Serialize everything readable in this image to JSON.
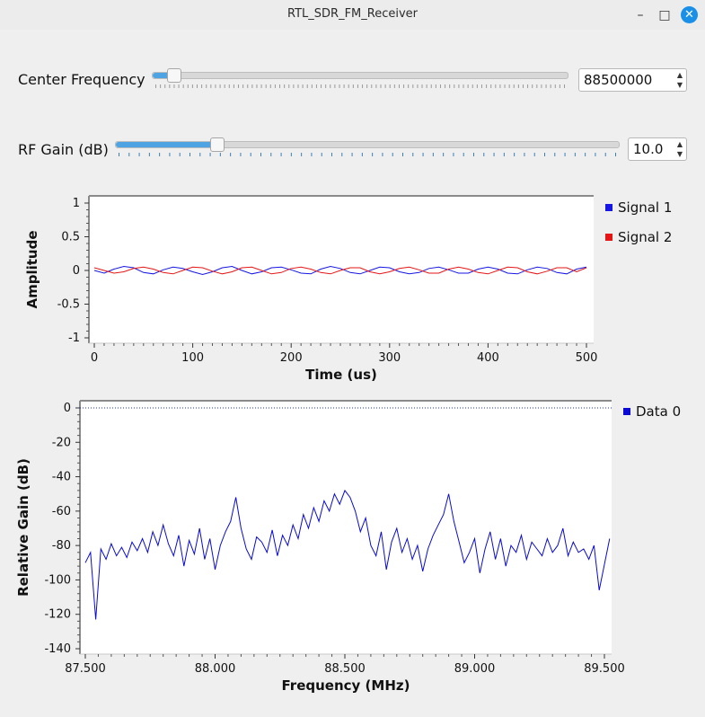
{
  "window": {
    "title": "RTL_SDR_FM_Receiver"
  },
  "controls": {
    "center_frequency": {
      "label": "Center Frequency",
      "value": "88500000",
      "slider_fraction": 0.05
    },
    "rf_gain": {
      "label": "RF Gain (dB)",
      "value": "10.0",
      "slider_fraction": 0.2
    }
  },
  "colors": {
    "signal1": "#1515e6",
    "signal2": "#e61515",
    "data0": "#0a0ad4",
    "slider_fill": "#4ea3e2",
    "close_button": "#1a8fe8"
  },
  "icons": {
    "minimize": "minimize-icon",
    "maximize": "maximize-icon",
    "close": "close-icon"
  },
  "chart_data": [
    {
      "type": "line",
      "xlabel": "Time (us)",
      "ylabel": "Amplitude",
      "xlim": [
        0,
        500
      ],
      "ylim": [
        -1,
        1
      ],
      "xticks": [
        "0",
        "100",
        "200",
        "300",
        "400",
        "500"
      ],
      "yticks": [
        "1",
        "0.5",
        "0",
        "-0.5",
        "-1"
      ],
      "legend_position": "right",
      "series": [
        {
          "name": "Signal 1",
          "x": [
            0,
            10,
            20,
            30,
            40,
            50,
            60,
            70,
            80,
            90,
            100,
            110,
            120,
            130,
            140,
            150,
            160,
            170,
            180,
            190,
            200,
            210,
            220,
            230,
            240,
            250,
            260,
            270,
            280,
            290,
            300,
            310,
            320,
            330,
            340,
            350,
            360,
            370,
            380,
            390,
            400,
            410,
            420,
            430,
            440,
            450,
            460,
            470,
            480,
            490,
            500
          ],
          "y": [
            0.0,
            -0.04,
            0.02,
            0.06,
            0.04,
            -0.03,
            -0.05,
            0.01,
            0.05,
            0.03,
            -0.02,
            -0.06,
            -0.02,
            0.04,
            0.06,
            0.0,
            -0.05,
            -0.02,
            0.04,
            0.05,
            0.01,
            -0.04,
            -0.05,
            0.02,
            0.06,
            0.03,
            -0.03,
            -0.05,
            0.0,
            0.05,
            0.04,
            -0.02,
            -0.05,
            -0.03,
            0.03,
            0.05,
            0.01,
            -0.04,
            -0.04,
            0.02,
            0.05,
            0.02,
            -0.04,
            -0.05,
            0.01,
            0.05,
            0.03,
            -0.03,
            -0.05,
            0.02,
            0.05
          ]
        },
        {
          "name": "Signal 2",
          "x": [
            0,
            10,
            20,
            30,
            40,
            50,
            60,
            70,
            80,
            90,
            100,
            110,
            120,
            130,
            140,
            150,
            160,
            170,
            180,
            190,
            200,
            210,
            220,
            230,
            240,
            250,
            260,
            270,
            280,
            290,
            300,
            310,
            320,
            330,
            340,
            350,
            360,
            370,
            380,
            390,
            400,
            410,
            420,
            430,
            440,
            450,
            460,
            470,
            480,
            490,
            500
          ],
          "y": [
            0.04,
            0.0,
            -0.04,
            -0.02,
            0.03,
            0.05,
            0.02,
            -0.03,
            -0.05,
            0.0,
            0.05,
            0.04,
            -0.01,
            -0.05,
            -0.02,
            0.04,
            0.05,
            0.0,
            -0.05,
            -0.03,
            0.03,
            0.05,
            0.02,
            -0.03,
            -0.05,
            0.0,
            0.04,
            0.04,
            -0.02,
            -0.05,
            -0.02,
            0.03,
            0.05,
            0.01,
            -0.04,
            -0.04,
            0.02,
            0.05,
            0.02,
            -0.03,
            -0.05,
            0.0,
            0.05,
            0.04,
            -0.02,
            -0.05,
            -0.01,
            0.04,
            0.04,
            -0.02,
            0.04
          ]
        }
      ]
    },
    {
      "type": "line",
      "xlabel": "Frequency (MHz)",
      "ylabel": "Relative Gain (dB)",
      "xlim": [
        87.5,
        89.5
      ],
      "ylim": [
        -140,
        0
      ],
      "xticks": [
        "87.500",
        "88.000",
        "88.500",
        "89.000",
        "89.500"
      ],
      "yticks": [
        "0",
        "-20",
        "-40",
        "-60",
        "-80",
        "-100",
        "-120",
        "-140"
      ],
      "legend_position": "right",
      "reference_line": 0,
      "series": [
        {
          "name": "Data 0",
          "x": [
            87.5,
            87.52,
            87.54,
            87.56,
            87.58,
            87.6,
            87.62,
            87.64,
            87.66,
            87.68,
            87.7,
            87.72,
            87.74,
            87.76,
            87.78,
            87.8,
            87.82,
            87.84,
            87.86,
            87.88,
            87.9,
            87.92,
            87.94,
            87.96,
            87.98,
            88.0,
            88.02,
            88.04,
            88.06,
            88.08,
            88.1,
            88.12,
            88.14,
            88.16,
            88.18,
            88.2,
            88.22,
            88.24,
            88.26,
            88.28,
            88.3,
            88.32,
            88.34,
            88.36,
            88.38,
            88.4,
            88.42,
            88.44,
            88.46,
            88.48,
            88.5,
            88.52,
            88.54,
            88.56,
            88.58,
            88.6,
            88.62,
            88.64,
            88.66,
            88.68,
            88.7,
            88.72,
            88.74,
            88.76,
            88.78,
            88.8,
            88.82,
            88.84,
            88.86,
            88.88,
            88.9,
            88.92,
            88.94,
            88.96,
            88.98,
            89.0,
            89.02,
            89.04,
            89.06,
            89.08,
            89.1,
            89.12,
            89.14,
            89.16,
            89.18,
            89.2,
            89.22,
            89.24,
            89.26,
            89.28,
            89.3,
            89.32,
            89.34,
            89.36,
            89.38,
            89.4,
            89.42,
            89.44,
            89.46,
            89.48,
            89.52
          ],
          "y": [
            -90,
            -84,
            -123,
            -82,
            -88,
            -79,
            -86,
            -81,
            -87,
            -78,
            -83,
            -76,
            -84,
            -72,
            -80,
            -68,
            -79,
            -86,
            -74,
            -92,
            -77,
            -85,
            -70,
            -88,
            -76,
            -94,
            -80,
            -72,
            -66,
            -52,
            -70,
            -82,
            -88,
            -75,
            -78,
            -84,
            -71,
            -86,
            -74,
            -80,
            -68,
            -76,
            -62,
            -70,
            -58,
            -66,
            -54,
            -60,
            -50,
            -56,
            -48,
            -52,
            -60,
            -72,
            -64,
            -80,
            -86,
            -72,
            -94,
            -78,
            -70,
            -84,
            -76,
            -88,
            -80,
            -95,
            -82,
            -74,
            -68,
            -62,
            -50,
            -66,
            -78,
            -90,
            -84,
            -76,
            -96,
            -82,
            -72,
            -88,
            -76,
            -92,
            -80,
            -84,
            -74,
            -88,
            -78,
            -82,
            -86,
            -76,
            -84,
            -80,
            -70,
            -86,
            -78,
            -84,
            -82,
            -88,
            -80,
            -106,
            -76
          ]
        }
      ]
    }
  ]
}
